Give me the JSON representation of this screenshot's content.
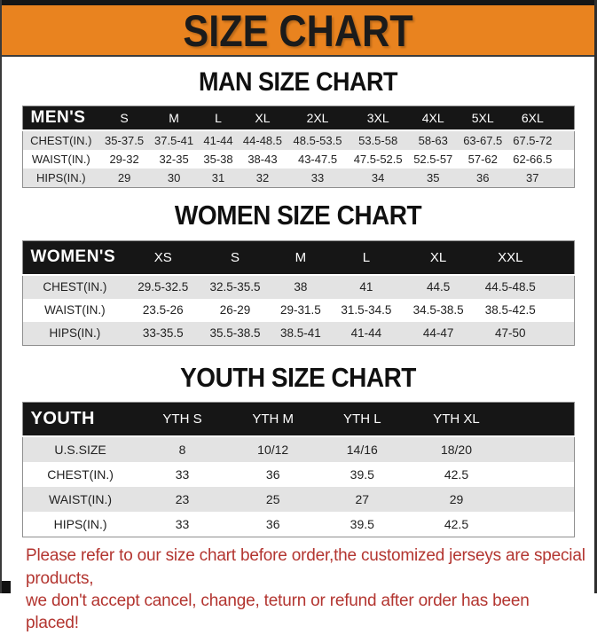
{
  "banner": {
    "title": "SIZE CHART"
  },
  "colors": {
    "banner_orange": "#E9831F",
    "header_black": "#161616",
    "row_gray": "#E3E3E3",
    "note_red": "#B33530"
  },
  "sections": [
    {
      "heading": "MAN SIZE CHART",
      "table": {
        "header": [
          "MEN'S",
          "S",
          "M",
          "L",
          "XL",
          "2XL",
          "3XL",
          "4XL",
          "5XL",
          "6XL"
        ],
        "rows": [
          [
            "CHEST(IN.)",
            "35-37.5",
            "37.5-41",
            "41-44",
            "44-48.5",
            "48.5-53.5",
            "53.5-58",
            "58-63",
            "63-67.5",
            "67.5-72"
          ],
          [
            "WAIST(IN.)",
            "29-32",
            "32-35",
            "35-38",
            "38-43",
            "43-47.5",
            "47.5-52.5",
            "52.5-57",
            "57-62",
            "62-66.5"
          ],
          [
            "HIPS(IN.)",
            "29",
            "30",
            "31",
            "32",
            "33",
            "34",
            "35",
            "36",
            "37"
          ]
        ]
      }
    },
    {
      "heading": "WOMEN SIZE CHART",
      "table": {
        "header": [
          "WOMEN'S",
          "XS",
          "S",
          "M",
          "L",
          "XL",
          "XXL"
        ],
        "rows": [
          [
            "CHEST(IN.)",
            "29.5-32.5",
            "32.5-35.5",
            "38",
            "41",
            "44.5",
            "44.5-48.5"
          ],
          [
            "WAIST(IN.)",
            "23.5-26",
            "26-29",
            "29-31.5",
            "31.5-34.5",
            "34.5-38.5",
            "38.5-42.5"
          ],
          [
            "HIPS(IN.)",
            "33-35.5",
            "35.5-38.5",
            "38.5-41",
            "41-44",
            "44-47",
            "47-50"
          ]
        ]
      }
    },
    {
      "heading": "YOUTH SIZE CHART",
      "table": {
        "header": [
          "YOUTH",
          "YTH S",
          "YTH M",
          "YTH L",
          "YTH XL"
        ],
        "rows": [
          [
            "U.S.SIZE",
            "8",
            "10/12",
            "14/16",
            "18/20"
          ],
          [
            "CHEST(IN.)",
            "33",
            "36",
            "39.5",
            "42.5"
          ],
          [
            "WAIST(IN.)",
            "23",
            "25",
            "27",
            "29"
          ],
          [
            "HIPS(IN.)",
            "33",
            "36",
            "39.5",
            "42.5"
          ]
        ]
      }
    }
  ],
  "footer": {
    "line1": "Please refer to our size chart before order,the customized jerseys are special products,",
    "line2": "we don't accept cancel, change, teturn or refund after order has been placed!"
  }
}
